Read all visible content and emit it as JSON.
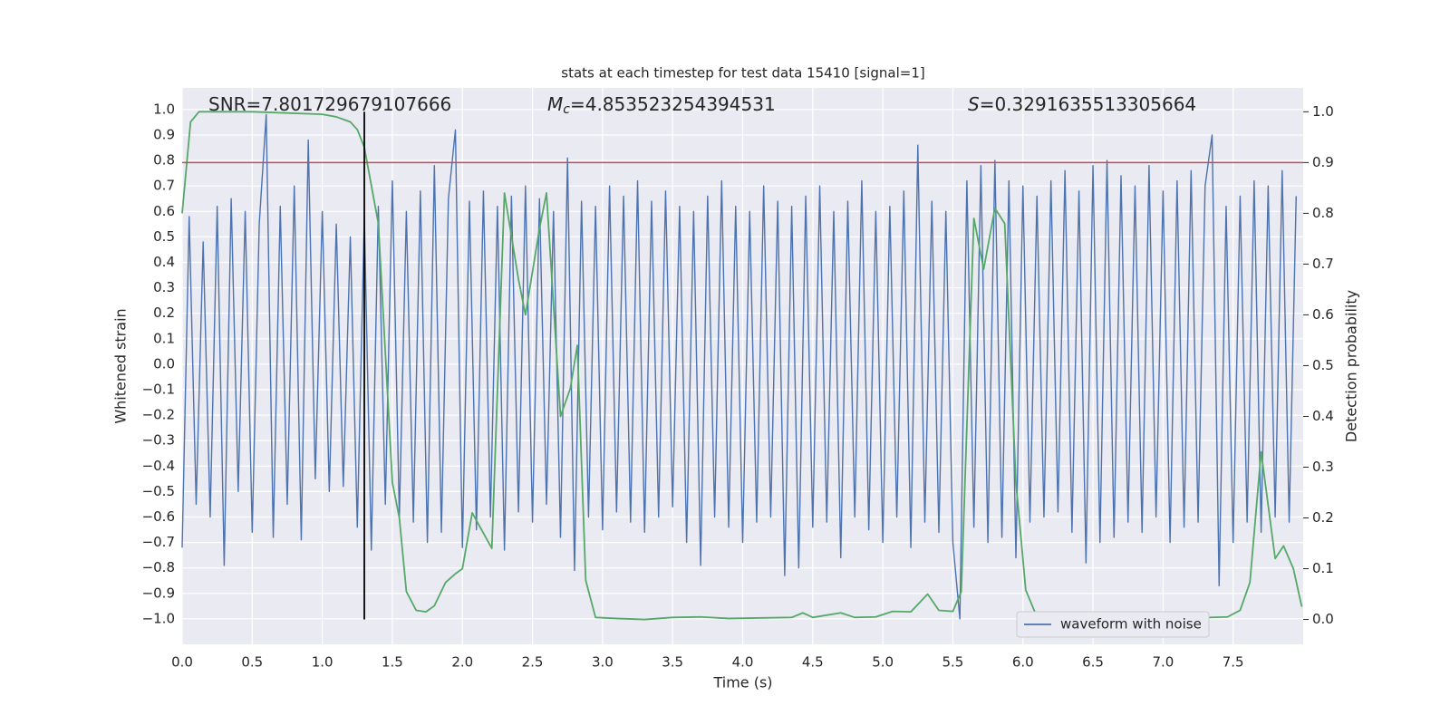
{
  "chart_data": {
    "type": "line",
    "title": "stats at each timestep for test data 15410 [signal=1]",
    "xlabel": "Time (s)",
    "ylabel": "Whitened strain",
    "y2label": "Detection probability",
    "annotations": [
      {
        "text": "SNR=7.801729679107666"
      },
      {
        "symbol": "M",
        "subscript": "c",
        "text": "=4.853523254394531"
      },
      {
        "symbol": "S",
        "text": "=0.3291635513305664"
      }
    ],
    "xlim": [
      0,
      8.0
    ],
    "ylim": [
      -1.1,
      1.085
    ],
    "y2lim": [
      -0.049,
      1.047
    ],
    "grid": true,
    "legend": "lower right",
    "xticks": [
      {
        "value": 0,
        "label": "0.0"
      },
      0.5,
      {
        "value": 1,
        "label": "1.0"
      },
      1.5,
      {
        "value": 2,
        "label": "2.0"
      },
      2.5,
      {
        "value": 3,
        "label": "3.0"
      },
      3.5,
      {
        "value": 4,
        "label": "4.0"
      },
      4.5,
      {
        "value": 5,
        "label": "5.0"
      },
      5.5,
      {
        "value": 6,
        "label": "6.0"
      },
      6.5,
      {
        "value": 7,
        "label": "7.0"
      },
      7.5
    ],
    "yticks": [
      {
        "value": 1,
        "label": "1.0"
      },
      0.9,
      0.8,
      0.7,
      0.6,
      0.5,
      0.4,
      0.3,
      0.2,
      0.1,
      {
        "value": 0,
        "label": "0.0"
      },
      {
        "value": -0.1,
        "label": "−0.1"
      },
      {
        "value": -0.2,
        "label": "−0.2"
      },
      {
        "value": -0.3,
        "label": "−0.3"
      },
      {
        "value": -0.4,
        "label": "−0.4"
      },
      {
        "value": -0.5,
        "label": "−0.5"
      },
      {
        "value": -0.6,
        "label": "−0.6"
      },
      {
        "value": -0.7,
        "label": "−0.7"
      },
      {
        "value": -0.8,
        "label": "−0.8"
      },
      {
        "value": -0.9,
        "label": "−0.9"
      },
      {
        "value": -1,
        "label": "−1.0"
      }
    ],
    "y2ticks": [
      {
        "value": 0,
        "label": "0.0"
      },
      0.1,
      0.2,
      0.3,
      0.4,
      0.5,
      0.6,
      0.7,
      0.8,
      0.9,
      {
        "value": 1,
        "label": "1.0"
      }
    ],
    "series": [
      {
        "name": "waveform with noise",
        "color": "#4c72b0",
        "x": [
          0,
          0.05,
          0.1,
          0.15,
          0.2,
          0.25,
          0.3,
          0.35,
          0.4,
          0.45,
          0.5,
          0.55,
          0.6,
          0.65,
          0.7,
          0.75,
          0.8,
          0.85,
          0.9,
          0.95,
          1,
          1.05,
          1.1,
          1.15,
          1.2,
          1.25,
          1.3,
          1.35,
          1.4,
          1.45,
          1.5,
          1.55,
          1.6,
          1.65,
          1.7,
          1.75,
          1.8,
          1.85,
          1.9,
          1.95,
          2,
          2.05,
          2.1,
          2.15,
          2.2,
          2.25,
          2.3,
          2.35,
          2.4,
          2.45,
          2.5,
          2.55,
          2.6,
          2.65,
          2.7,
          2.75,
          2.8,
          2.85,
          2.9,
          2.95,
          3,
          3.05,
          3.1,
          3.15,
          3.2,
          3.25,
          3.3,
          3.35,
          3.4,
          3.45,
          3.5,
          3.55,
          3.6,
          3.65,
          3.7,
          3.75,
          3.8,
          3.85,
          3.9,
          3.95,
          4,
          4.05,
          4.1,
          4.15,
          4.2,
          4.25,
          4.3,
          4.35,
          4.4,
          4.45,
          4.5,
          4.55,
          4.6,
          4.65,
          4.7,
          4.75,
          4.8,
          4.85,
          4.9,
          4.95,
          5,
          5.05,
          5.1,
          5.15,
          5.2,
          5.25,
          5.3,
          5.35,
          5.4,
          5.45,
          5.5,
          5.55,
          5.6,
          5.65,
          5.7,
          5.75,
          5.8,
          5.85,
          5.9,
          5.95,
          6,
          6.05,
          6.1,
          6.15,
          6.2,
          6.25,
          6.3,
          6.35,
          6.4,
          6.45,
          6.5,
          6.55,
          6.6,
          6.65,
          6.7,
          6.75,
          6.8,
          6.85,
          6.9,
          6.95,
          7,
          7.05,
          7.1,
          7.15,
          7.2,
          7.25,
          7.3,
          7.35,
          7.4,
          7.45,
          7.5,
          7.55,
          7.6,
          7.65,
          7.7,
          7.75,
          7.8,
          7.85,
          7.9,
          7.95
        ],
        "values": [
          -0.72,
          0.58,
          -0.55,
          0.48,
          -0.6,
          0.62,
          -0.79,
          0.65,
          -0.5,
          0.6,
          -0.66,
          0.55,
          0.98,
          -0.68,
          0.62,
          -0.55,
          0.7,
          -0.69,
          0.88,
          -0.45,
          0.6,
          -0.5,
          0.55,
          -0.48,
          0.5,
          -0.64,
          0.58,
          -0.73,
          0.62,
          -0.55,
          0.72,
          -0.6,
          0.6,
          -0.62,
          0.68,
          -0.7,
          0.78,
          -0.66,
          0.65,
          0.92,
          -0.72,
          0.64,
          -0.65,
          0.68,
          -0.6,
          0.62,
          -0.73,
          0.66,
          -0.58,
          0.7,
          -0.62,
          0.65,
          -0.55,
          0.6,
          -0.68,
          0.81,
          -0.81,
          0.64,
          -0.6,
          0.62,
          -0.65,
          0.7,
          -0.58,
          0.66,
          -0.62,
          0.72,
          -0.66,
          0.64,
          -0.6,
          0.68,
          -0.56,
          0.62,
          -0.7,
          0.6,
          -0.79,
          0.66,
          -0.6,
          0.72,
          -0.64,
          0.62,
          -0.7,
          0.6,
          -0.62,
          0.7,
          -0.6,
          0.64,
          -0.83,
          0.62,
          -0.8,
          0.66,
          -0.64,
          0.7,
          -0.62,
          0.6,
          -0.76,
          0.64,
          -0.6,
          0.72,
          -0.65,
          0.6,
          -0.7,
          0.62,
          -0.6,
          0.68,
          -0.72,
          0.86,
          -0.62,
          0.64,
          -0.66,
          0.6,
          -0.7,
          -1.0,
          0.72,
          -0.64,
          0.78,
          -0.7,
          0.8,
          -0.68,
          0.72,
          -0.76,
          0.7,
          -0.62,
          0.66,
          -0.6,
          0.72,
          -0.58,
          0.76,
          -0.66,
          0.68,
          -0.78,
          0.78,
          -0.7,
          0.8,
          -0.68,
          0.74,
          -0.62,
          0.7,
          -0.66,
          0.78,
          -0.6,
          0.68,
          -0.7,
          0.72,
          -0.64,
          0.76,
          -0.62,
          0.7,
          0.9,
          -0.87,
          0.62,
          -0.7,
          0.66,
          -0.62,
          0.72,
          -0.66,
          0.7,
          -0.6,
          0.76,
          -0.62,
          0.66
        ]
      },
      {
        "color": "#55a868",
        "axis": "y2",
        "x": [
          0,
          0.06,
          0.12,
          0.5,
          1.0,
          1.1,
          1.2,
          1.25,
          1.3,
          1.4,
          1.5,
          1.55,
          1.6,
          1.67,
          1.74,
          1.8,
          1.88,
          1.95,
          2.0,
          2.07,
          2.15,
          2.21,
          2.3,
          2.4,
          2.45,
          2.55,
          2.6,
          2.7,
          2.77,
          2.82,
          2.88,
          2.95,
          3.1,
          3.3,
          3.5,
          3.7,
          3.9,
          4.35,
          4.43,
          4.5,
          4.7,
          4.8,
          4.95,
          5.07,
          5.2,
          5.32,
          5.4,
          5.5,
          5.56,
          5.65,
          5.72,
          5.8,
          5.87,
          5.95,
          6.02,
          6.1,
          6.3,
          6.8,
          7.1,
          7.46,
          7.55,
          7.62,
          7.7,
          7.8,
          7.86,
          7.93,
          7.99
        ],
        "values": [
          0.8,
          0.98,
          1.0,
          1.0,
          0.995,
          0.99,
          0.98,
          0.965,
          0.93,
          0.78,
          0.27,
          0.2,
          0.055,
          0.018,
          0.015,
          0.027,
          0.073,
          0.09,
          0.1,
          0.21,
          0.17,
          0.14,
          0.84,
          0.67,
          0.6,
          0.77,
          0.84,
          0.4,
          0.455,
          0.54,
          0.077,
          0.004,
          0.002,
          0.0,
          0.004,
          0.005,
          0.002,
          0.004,
          0.013,
          0.004,
          0.013,
          0.004,
          0.005,
          0.016,
          0.015,
          0.05,
          0.018,
          0.016,
          0.055,
          0.79,
          0.69,
          0.81,
          0.78,
          0.27,
          0.058,
          0.005,
          0.002,
          0.004,
          0.002,
          0.005,
          0.018,
          0.073,
          0.33,
          0.12,
          0.145,
          0.1,
          0.025
        ]
      }
    ],
    "hlines": [
      {
        "y": 0.9,
        "axis": "y2",
        "color": "#c44e52"
      }
    ],
    "vlines": [
      {
        "x": 1.3,
        "ymin": 0,
        "ymax": 1,
        "axis": "y2",
        "color": "#000000"
      }
    ]
  }
}
